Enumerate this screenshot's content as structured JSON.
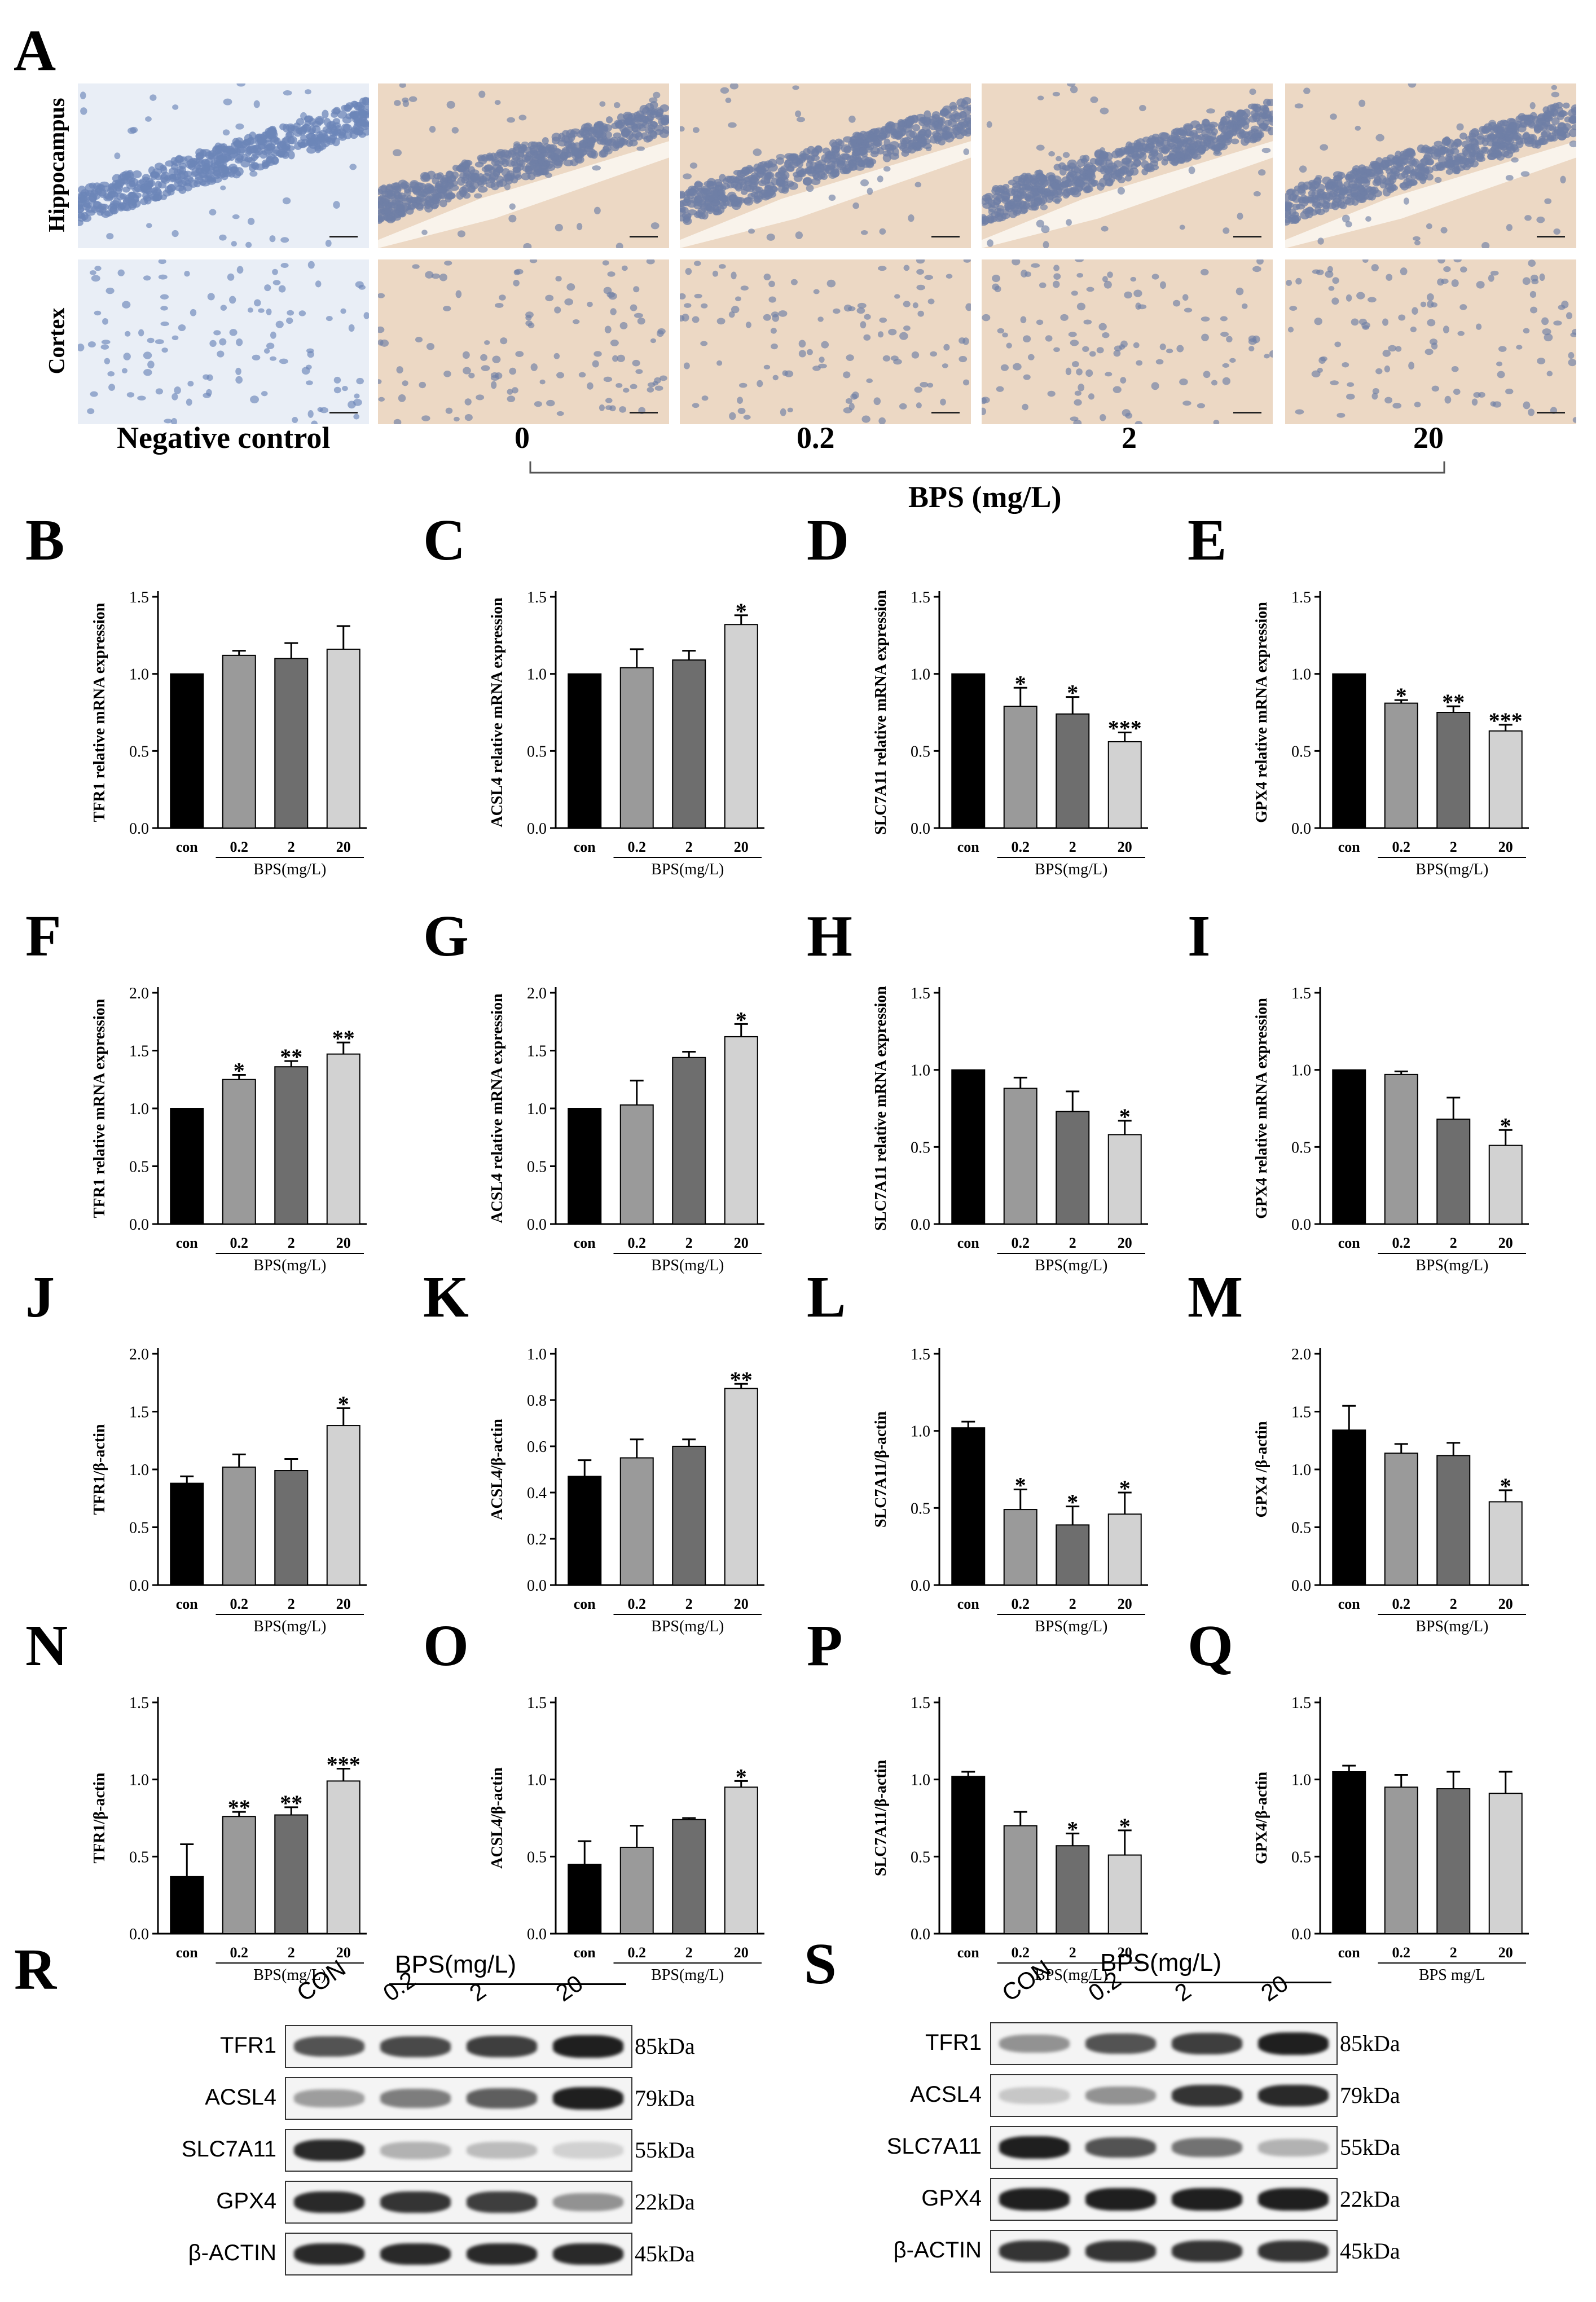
{
  "panelA": {
    "label": "A",
    "rows": [
      "Hippocampus",
      "Cortex"
    ],
    "columns": [
      "Negative control",
      "0",
      "0.2",
      "2",
      "20"
    ],
    "group_label": "BPS (mg/L)",
    "colors": {
      "negative_bg": "#e9eef6",
      "negative_cell": "#6c86b8",
      "stained_bg": "#ecd8c4",
      "stained_cell": "#6f7fa6"
    }
  },
  "chart_data": [
    {
      "id": "B",
      "type": "bar",
      "ylabel": "TFR1 relative mRNA expression",
      "categories": [
        "con",
        "0.2",
        "2",
        "20"
      ],
      "values": [
        1.0,
        1.12,
        1.1,
        1.16
      ],
      "errors": [
        0,
        0.03,
        0.1,
        0.15
      ],
      "sig": [
        "",
        "",
        "",
        ""
      ],
      "ylim": [
        0,
        1.5
      ],
      "yticks": [
        "0.0",
        "0.5",
        "1.0",
        "1.5"
      ],
      "xlabel": "BPS(mg/L)"
    },
    {
      "id": "C",
      "type": "bar",
      "ylabel": "ACSL4 relative mRNA expression",
      "categories": [
        "con",
        "0.2",
        "2",
        "20"
      ],
      "values": [
        1.0,
        1.04,
        1.09,
        1.32
      ],
      "errors": [
        0,
        0.12,
        0.06,
        0.06
      ],
      "sig": [
        "",
        "",
        "",
        "*"
      ],
      "ylim": [
        0,
        1.5
      ],
      "yticks": [
        "0.0",
        "0.5",
        "1.0",
        "1.5"
      ],
      "xlabel": "BPS(mg/L)"
    },
    {
      "id": "D",
      "type": "bar",
      "ylabel": "SLC7A11 relative mRNA expression",
      "categories": [
        "con",
        "0.2",
        "2",
        "20"
      ],
      "values": [
        1.0,
        0.79,
        0.74,
        0.56
      ],
      "errors": [
        0,
        0.12,
        0.11,
        0.06
      ],
      "sig": [
        "",
        "*",
        "*",
        "***"
      ],
      "ylim": [
        0,
        1.5
      ],
      "yticks": [
        "0.0",
        "0.5",
        "1.0",
        "1.5"
      ],
      "xlabel": "BPS(mg/L)"
    },
    {
      "id": "E",
      "type": "bar",
      "ylabel": "GPX4 relative mRNA expression",
      "categories": [
        "con",
        "0.2",
        "2",
        "20"
      ],
      "values": [
        1.0,
        0.81,
        0.75,
        0.63
      ],
      "errors": [
        0,
        0.02,
        0.04,
        0.04
      ],
      "sig": [
        "",
        "*",
        "**",
        "***"
      ],
      "ylim": [
        0,
        1.5
      ],
      "yticks": [
        "0.0",
        "0.5",
        "1.0",
        "1.5"
      ],
      "xlabel": "BPS(mg/L)"
    },
    {
      "id": "F",
      "type": "bar",
      "ylabel": "TFR1 relative mRNA expression",
      "categories": [
        "con",
        "0.2",
        "2",
        "20"
      ],
      "values": [
        1.0,
        1.25,
        1.36,
        1.47
      ],
      "errors": [
        0,
        0.04,
        0.05,
        0.1
      ],
      "sig": [
        "",
        "*",
        "**",
        "**"
      ],
      "ylim": [
        0,
        2.0
      ],
      "yticks": [
        "0.0",
        "0.5",
        "1.0",
        "1.5",
        "2.0"
      ],
      "xlabel": "BPS(mg/L)"
    },
    {
      "id": "G",
      "type": "bar",
      "ylabel": "ACSL4 relative mRNA expression",
      "categories": [
        "con",
        "0.2",
        "2",
        "20"
      ],
      "values": [
        1.0,
        1.03,
        1.44,
        1.62
      ],
      "errors": [
        0,
        0.21,
        0.05,
        0.11
      ],
      "sig": [
        "",
        "",
        "",
        "*"
      ],
      "ylim": [
        0,
        2.0
      ],
      "yticks": [
        "0.0",
        "0.5",
        "1.0",
        "1.5",
        "2.0"
      ],
      "xlabel": "BPS(mg/L)"
    },
    {
      "id": "H",
      "type": "bar",
      "ylabel": "SLC7A11 relative mRNA expression",
      "categories": [
        "con",
        "0.2",
        "2",
        "20"
      ],
      "values": [
        1.0,
        0.88,
        0.73,
        0.58
      ],
      "errors": [
        0,
        0.07,
        0.13,
        0.09
      ],
      "sig": [
        "",
        "",
        "",
        "*"
      ],
      "ylim": [
        0,
        1.5
      ],
      "yticks": [
        "0.0",
        "0.5",
        "1.0",
        "1.5"
      ],
      "xlabel": "BPS(mg/L)"
    },
    {
      "id": "I",
      "type": "bar",
      "ylabel": "GPX4 relative mRNA expression",
      "categories": [
        "con",
        "0.2",
        "2",
        "20"
      ],
      "values": [
        1.0,
        0.97,
        0.68,
        0.51
      ],
      "errors": [
        0,
        0.02,
        0.14,
        0.1
      ],
      "sig": [
        "",
        "",
        "",
        "*"
      ],
      "ylim": [
        0,
        1.5
      ],
      "yticks": [
        "0.0",
        "0.5",
        "1.0",
        "1.5"
      ],
      "xlabel": "BPS(mg/L)"
    },
    {
      "id": "J",
      "type": "bar",
      "ylabel": "TFR1/β-actin",
      "categories": [
        "con",
        "0.2",
        "2",
        "20"
      ],
      "values": [
        0.88,
        1.02,
        0.99,
        1.38
      ],
      "errors": [
        0.06,
        0.11,
        0.1,
        0.15
      ],
      "sig": [
        "",
        "",
        "",
        "*"
      ],
      "ylim": [
        0,
        2.0
      ],
      "yticks": [
        "0.0",
        "0.5",
        "1.0",
        "1.5",
        "2.0"
      ],
      "xlabel": "BPS(mg/L)"
    },
    {
      "id": "K",
      "type": "bar",
      "ylabel": "ACSL4/β-actin",
      "categories": [
        "con",
        "0.2",
        "2",
        "20"
      ],
      "values": [
        0.47,
        0.55,
        0.6,
        0.85
      ],
      "errors": [
        0.07,
        0.08,
        0.03,
        0.02
      ],
      "sig": [
        "",
        "",
        "",
        "**"
      ],
      "ylim": [
        0,
        1.0
      ],
      "yticks": [
        "0.0",
        "0.2",
        "0.4",
        "0.6",
        "0.8",
        "1.0"
      ],
      "xlabel": "BPS(mg/L)"
    },
    {
      "id": "L",
      "type": "bar",
      "ylabel": "SLC7A11/β-actin",
      "categories": [
        "con",
        "0.2",
        "2",
        "20"
      ],
      "values": [
        1.02,
        0.49,
        0.39,
        0.46
      ],
      "errors": [
        0.04,
        0.13,
        0.12,
        0.14
      ],
      "sig": [
        "",
        "*",
        "*",
        "*"
      ],
      "ylim": [
        0,
        1.5
      ],
      "yticks": [
        "0.0",
        "0.5",
        "1.0",
        "1.5"
      ],
      "xlabel": "BPS(mg/L)"
    },
    {
      "id": "M",
      "type": "bar",
      "ylabel": "GPX4 /β-actin",
      "categories": [
        "con",
        "0.2",
        "2",
        "20"
      ],
      "values": [
        1.34,
        1.14,
        1.12,
        0.72
      ],
      "errors": [
        0.21,
        0.08,
        0.11,
        0.1
      ],
      "sig": [
        "",
        "",
        "",
        "*"
      ],
      "ylim": [
        0,
        2.0
      ],
      "yticks": [
        "0.0",
        "0.5",
        "1.0",
        "1.5",
        "2.0"
      ],
      "xlabel": "BPS(mg/L)"
    },
    {
      "id": "N",
      "type": "bar",
      "ylabel": "TFR1/β-actin",
      "categories": [
        "con",
        "0.2",
        "2",
        "20"
      ],
      "values": [
        0.37,
        0.76,
        0.77,
        0.99
      ],
      "errors": [
        0.21,
        0.03,
        0.05,
        0.08
      ],
      "sig": [
        "",
        "**",
        "**",
        "***"
      ],
      "ylim": [
        0,
        1.5
      ],
      "yticks": [
        "0.0",
        "0.5",
        "1.0",
        "1.5"
      ],
      "xlabel": "BPS(mg/L)"
    },
    {
      "id": "O",
      "type": "bar",
      "ylabel": "ACSL4/β-actin",
      "categories": [
        "con",
        "0.2",
        "2",
        "20"
      ],
      "values": [
        0.45,
        0.56,
        0.74,
        0.95
      ],
      "errors": [
        0.15,
        0.14,
        0.01,
        0.04
      ],
      "sig": [
        "",
        "",
        "",
        "*"
      ],
      "ylim": [
        0,
        1.5
      ],
      "yticks": [
        "0.0",
        "0.5",
        "1.0",
        "1.5"
      ],
      "xlabel": "BPS(mg/L)"
    },
    {
      "id": "P",
      "type": "bar",
      "ylabel": "SLC7A11/β-actin",
      "categories": [
        "con",
        "0.2",
        "2",
        "20"
      ],
      "values": [
        1.02,
        0.7,
        0.57,
        0.51
      ],
      "errors": [
        0.03,
        0.09,
        0.08,
        0.16
      ],
      "sig": [
        "",
        "",
        "*",
        "*"
      ],
      "ylim": [
        0,
        1.5
      ],
      "yticks": [
        "0.0",
        "0.5",
        "1.0",
        "1.5"
      ],
      "xlabel": "BPS(mg/L)"
    },
    {
      "id": "Q",
      "type": "bar",
      "ylabel": "GPX4/β-actin",
      "categories": [
        "con",
        "0.2",
        "2",
        "20"
      ],
      "values": [
        1.05,
        0.95,
        0.94,
        0.91
      ],
      "errors": [
        0.04,
        0.08,
        0.11,
        0.14
      ],
      "sig": [
        "",
        "",
        "",
        ""
      ],
      "ylim": [
        0,
        1.5
      ],
      "yticks": [
        "0.0",
        "0.5",
        "1.0",
        "1.5"
      ],
      "xlabel": "BPS mg/L"
    }
  ],
  "bar_colors": [
    "#000000",
    "#9a9a9a",
    "#6e6e6e",
    "#d2d2d2"
  ],
  "blots": [
    {
      "label": "R",
      "header": "BPS(mg/L)",
      "lanes": [
        "CON",
        "0.2",
        "2",
        "20"
      ],
      "rows": [
        {
          "name": "TFR1",
          "kda": "85kDa",
          "intensity": [
            0.7,
            0.75,
            0.8,
            0.95
          ]
        },
        {
          "name": "ACSL4",
          "kda": "79kDa",
          "intensity": [
            0.35,
            0.5,
            0.65,
            0.95
          ]
        },
        {
          "name": "SLC7A11",
          "kda": "55kDa",
          "intensity": [
            0.9,
            0.25,
            0.2,
            0.1
          ]
        },
        {
          "name": "GPX4",
          "kda": "22kDa",
          "intensity": [
            0.9,
            0.85,
            0.8,
            0.4
          ]
        },
        {
          "name": "β-ACTIN",
          "kda": "45kDa",
          "intensity": [
            0.9,
            0.9,
            0.9,
            0.9
          ]
        }
      ]
    },
    {
      "label": "S",
      "header": "BPS(mg/L)",
      "lanes": [
        "CON",
        "0.2",
        "2",
        "20"
      ],
      "rows": [
        {
          "name": "TFR1",
          "kda": "85kDa",
          "intensity": [
            0.4,
            0.7,
            0.8,
            0.95
          ]
        },
        {
          "name": "ACSL4",
          "kda": "79kDa",
          "intensity": [
            0.15,
            0.4,
            0.85,
            0.9
          ]
        },
        {
          "name": "SLC7A11",
          "kda": "55kDa",
          "intensity": [
            0.95,
            0.7,
            0.55,
            0.25
          ]
        },
        {
          "name": "GPX4",
          "kda": "22kDa",
          "intensity": [
            0.95,
            0.95,
            0.95,
            0.95
          ]
        },
        {
          "name": "β-ACTIN",
          "kda": "45kDa",
          "intensity": [
            0.85,
            0.85,
            0.85,
            0.85
          ]
        }
      ]
    }
  ]
}
